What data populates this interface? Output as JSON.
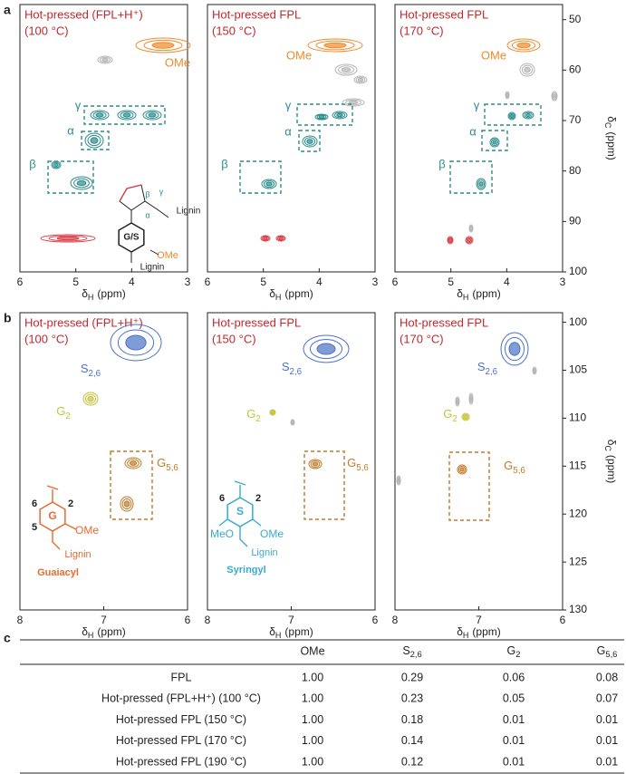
{
  "panels": [
    {
      "label": "a",
      "xlim": [
        6,
        3
      ],
      "xticks": [
        6,
        5,
        4,
        3
      ],
      "ylim": [
        47,
        100
      ],
      "yticks": [
        50,
        60,
        70,
        80,
        90,
        100
      ],
      "xlabel": {
        "text": "δ",
        "sub": "H",
        "unit": "(ppm)"
      },
      "ylabel": {
        "text": "δ",
        "sub": "C",
        "unit": "(ppm)"
      },
      "plots": [
        {
          "title": [
            "Hot-pressed (FPL+H⁺)",
            "(100 °C)"
          ],
          "annotations": [
            "OMe",
            "γ",
            "α",
            "β"
          ],
          "structure": {
            "core": "G/S",
            "substituent": "OMe",
            "linkage": [
              "Lignin",
              "Lignin"
            ],
            "positions": [
              "γ",
              "β",
              "α"
            ]
          }
        },
        {
          "title": [
            "Hot-pressed FPL",
            "(150 °C)"
          ],
          "annotations": [
            "OMe",
            "γ",
            "α",
            "β"
          ]
        },
        {
          "title": [
            "Hot-pressed FPL",
            "(170 °C)"
          ],
          "annotations": [
            "OMe",
            "γ",
            "α",
            "β"
          ]
        }
      ]
    },
    {
      "label": "b",
      "xlim": [
        8,
        6
      ],
      "xticks": [
        8,
        7,
        6
      ],
      "ylim": [
        99,
        130
      ],
      "yticks": [
        100,
        105,
        110,
        115,
        120,
        125,
        130
      ],
      "xlabel": {
        "text": "δ",
        "sub": "H",
        "unit": "(ppm)"
      },
      "ylabel": {
        "text": "δ",
        "sub": "C",
        "unit": "(ppm)"
      },
      "plots": [
        {
          "title": [
            "Hot-pressed (FPL+H⁺)",
            "(100 °C)"
          ],
          "annotations": [
            {
              "text": "S",
              "sub": "2,6"
            },
            {
              "text": "G",
              "sub": "2"
            },
            {
              "text": "G",
              "sub": "5,6"
            }
          ],
          "structure": {
            "numbers": [
              "6",
              "2",
              "5"
            ],
            "core": "G",
            "substituent": "OMe",
            "linkage": "Lignin",
            "name": "Guaiacyl"
          }
        },
        {
          "title": [
            "Hot-pressed FPL",
            "(150 °C)"
          ],
          "annotations": [
            {
              "text": "S",
              "sub": "2,6"
            },
            {
              "text": "G",
              "sub": "2"
            },
            {
              "text": "G",
              "sub": "5,6"
            }
          ],
          "structure": {
            "numbers": [
              "6",
              "2"
            ],
            "core": "S",
            "substituents": [
              "MeO",
              "OMe"
            ],
            "linkage": "Lignin",
            "name": "Syringyl"
          }
        },
        {
          "title": [
            "Hot-pressed FPL",
            "(170 °C)"
          ],
          "annotations": [
            {
              "text": "S",
              "sub": "2,6"
            },
            {
              "text": "G",
              "sub": "2"
            },
            {
              "text": "G",
              "sub": "5,6"
            }
          ]
        }
      ]
    }
  ],
  "table": {
    "label": "c",
    "header": [
      "",
      "OMe",
      {
        "text": "S",
        "sub": "2,6"
      },
      {
        "text": "G",
        "sub": "2"
      },
      {
        "text": "G",
        "sub": "5,6"
      }
    ],
    "rows": [
      [
        "FPL",
        "1.00",
        "0.29",
        "0.06",
        "0.08"
      ],
      [
        "Hot-pressed (FPL+H⁺) (100 °C)",
        "1.00",
        "0.23",
        "0.05",
        "0.07"
      ],
      [
        "Hot-pressed FPL (150 °C)",
        "1.00",
        "0.18",
        "0.01",
        "0.01"
      ],
      [
        "Hot-pressed FPL (170 °C)",
        "1.00",
        "0.14",
        "0.01",
        "0.01"
      ],
      [
        "Hot-pressed FPL (190 °C)",
        "1.00",
        "0.12",
        "0.01",
        "0.01"
      ]
    ]
  }
}
